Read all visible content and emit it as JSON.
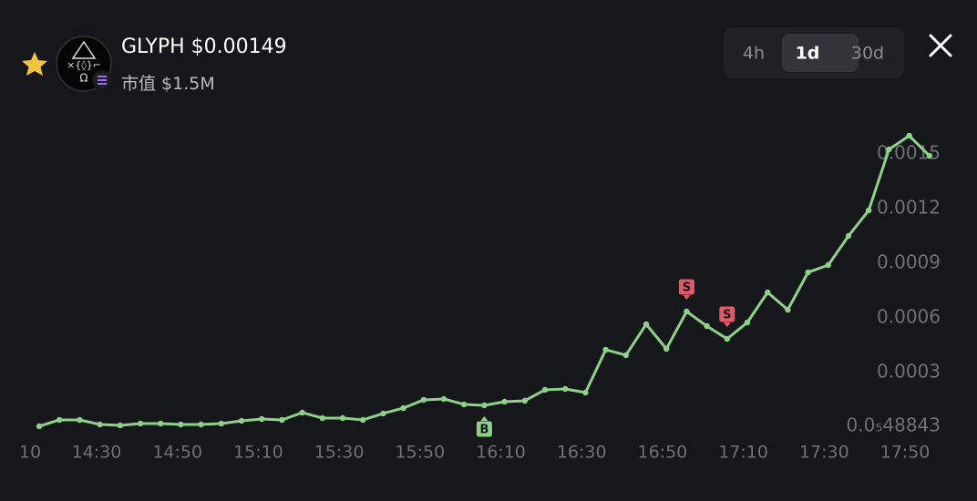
{
  "header": {
    "title": "GLYPH $0.00149",
    "market_cap_label": "市值",
    "market_cap": "$1.5M"
  },
  "timeframes": [
    "4h",
    "1d",
    "30d"
  ],
  "chart_data": {
    "type": "line",
    "color": "#8fd18a",
    "values": [
      5e-06,
      4e-05,
      4e-05,
      1.5e-05,
      1e-05,
      2e-05,
      2e-05,
      1.5e-05,
      1.5e-05,
      2e-05,
      3.5e-05,
      4.5e-05,
      4e-05,
      8e-05,
      5e-05,
      5e-05,
      4e-05,
      7.5e-05,
      0.000105,
      0.00015,
      0.000155,
      0.000125,
      0.00012,
      0.00014,
      0.000145,
      0.000205,
      0.00021,
      0.00019,
      0.000425,
      0.000395,
      0.000565,
      0.00043,
      0.000635,
      0.000555,
      0.000485,
      0.000575,
      0.00074,
      0.000645,
      0.00085,
      0.00089,
      0.00105,
      0.00119,
      0.001525,
      0.0016,
      0.00149
    ],
    "markers": [
      null,
      null,
      null,
      null,
      null,
      null,
      null,
      null,
      null,
      null,
      null,
      null,
      null,
      null,
      null,
      null,
      null,
      null,
      null,
      null,
      null,
      null,
      "B",
      null,
      null,
      null,
      null,
      null,
      null,
      null,
      null,
      null,
      "S",
      null,
      "S",
      null,
      null,
      null,
      null,
      null,
      null,
      null,
      null,
      null,
      null
    ],
    "ylim": [
      4.8843e-06,
      0.0016
    ],
    "yticks": [
      {
        "value": 4.8843e-06,
        "label": "0.0₅48843"
      },
      0.0003,
      0.0006,
      0.0009,
      0.0012,
      0.0015
    ],
    "xtick_labels": [
      "10",
      "14:30",
      "14:50",
      "15:10",
      "15:30",
      "15:50",
      "16:10",
      "16:30",
      "16:50",
      "17:10",
      "17:30",
      "17:50"
    ]
  }
}
